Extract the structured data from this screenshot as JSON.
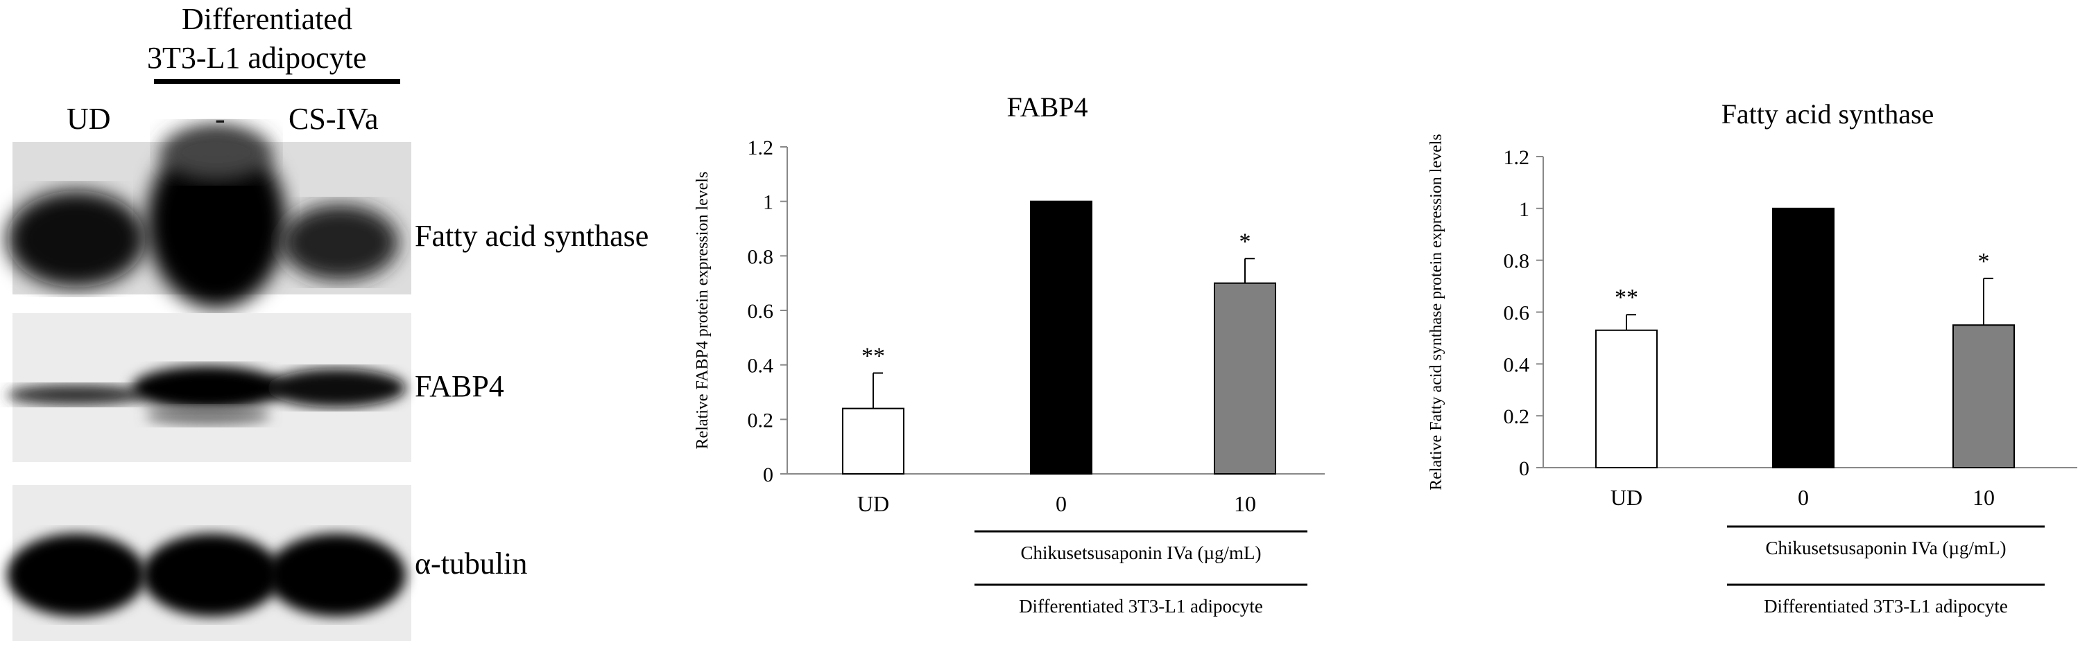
{
  "blot": {
    "header_line1": "Differentiated",
    "header_line2": "3T3-L1  adipocyte",
    "lanes": [
      "UD",
      "-",
      "CS-IVa"
    ],
    "bands": [
      "Fatty acid synthase",
      "FABP4",
      "α-tubulin"
    ]
  },
  "chart_data": [
    {
      "type": "bar",
      "title": "FABP4",
      "ylabel": "Relative FABP4 protein expression levels",
      "categories": [
        "UD",
        "0",
        "10"
      ],
      "values": [
        0.24,
        1.0,
        0.7
      ],
      "errors": [
        0.13,
        0.0,
        0.09
      ],
      "significance": [
        "**",
        "",
        "*"
      ],
      "bar_colors": [
        "#ffffff",
        "#000000",
        "#808080"
      ],
      "ylim": [
        0,
        1.2
      ],
      "yticks": [
        0,
        0.2,
        0.4,
        0.6,
        0.8,
        1,
        1.2
      ],
      "group_labels": [
        "Chikusetsusaponin IVa (µg/mL)",
        "Differentiated  3T3-L1 adipocyte"
      ]
    },
    {
      "type": "bar",
      "title": "Fatty acid synthase",
      "ylabel": "Relative Fatty acid synthase protein expression levels",
      "categories": [
        "UD",
        "0",
        "10"
      ],
      "values": [
        0.53,
        1.0,
        0.55
      ],
      "errors": [
        0.06,
        0.0,
        0.18
      ],
      "significance": [
        "**",
        "",
        "*"
      ],
      "bar_colors": [
        "#ffffff",
        "#000000",
        "#808080"
      ],
      "ylim": [
        0,
        1.2
      ],
      "yticks": [
        0,
        0.2,
        0.4,
        0.6,
        0.8,
        1,
        1.2
      ],
      "group_labels": [
        "Chikusetsusaponin  IVa (µg/mL)",
        "Differentiated  3T3-L1 adipocyte"
      ]
    }
  ]
}
